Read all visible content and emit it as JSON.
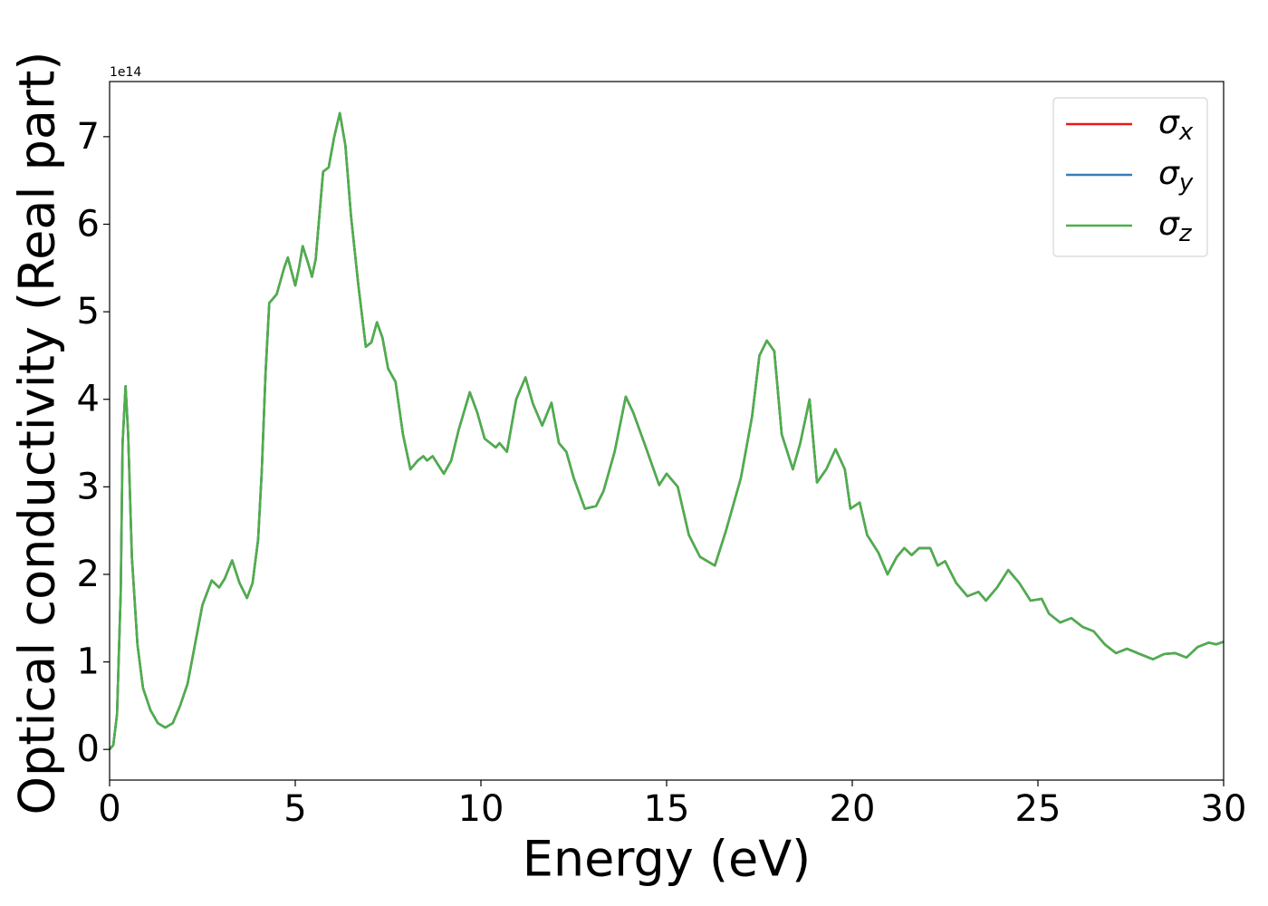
{
  "chart_data": {
    "type": "line",
    "x_label": "Energy (eV)",
    "y_label": "Optical conductivity (Real part)",
    "y_offset_label": "1e14",
    "xlim": [
      0,
      30
    ],
    "xticks": [
      0,
      5,
      10,
      15,
      20,
      25,
      30
    ],
    "ylim": [
      -0.35,
      7.63
    ],
    "yticks": [
      0,
      1,
      2,
      3,
      4,
      5,
      6,
      7
    ],
    "legend": "upper right",
    "x": [
      0,
      0.1,
      0.2,
      0.3,
      0.35,
      0.43,
      0.5,
      0.6,
      0.75,
      0.9,
      1.1,
      1.3,
      1.5,
      1.7,
      1.9,
      2.1,
      2.3,
      2.5,
      2.75,
      2.95,
      3.1,
      3.3,
      3.5,
      3.7,
      3.85,
      4.0,
      4.1,
      4.2,
      4.3,
      4.5,
      4.7,
      4.8,
      5.0,
      5.1,
      5.2,
      5.35,
      5.45,
      5.55,
      5.75,
      5.9,
      6.05,
      6.2,
      6.35,
      6.5,
      6.7,
      6.9,
      7.05,
      7.2,
      7.35,
      7.5,
      7.7,
      7.9,
      8.1,
      8.3,
      8.45,
      8.55,
      8.7,
      9.0,
      9.2,
      9.4,
      9.7,
      9.9,
      10.1,
      10.4,
      10.5,
      10.7,
      10.95,
      11.2,
      11.4,
      11.65,
      11.9,
      12.1,
      12.3,
      12.5,
      12.8,
      13.1,
      13.3,
      13.6,
      13.9,
      14.1,
      14.4,
      14.8,
      15.0,
      15.3,
      15.6,
      15.9,
      16.3,
      16.6,
      17.0,
      17.3,
      17.5,
      17.7,
      17.9,
      18.1,
      18.4,
      18.6,
      18.85,
      19.05,
      19.3,
      19.55,
      19.8,
      19.95,
      20.2,
      20.4,
      20.7,
      20.95,
      21.2,
      21.4,
      21.6,
      21.8,
      22.1,
      22.3,
      22.5,
      22.8,
      23.1,
      23.4,
      23.6,
      23.9,
      24.2,
      24.5,
      24.8,
      25.1,
      25.3,
      25.6,
      25.9,
      26.2,
      26.5,
      26.8,
      27.1,
      27.4,
      27.8,
      28.1,
      28.4,
      28.7,
      29.0,
      29.3,
      29.6,
      29.8,
      30.0
    ],
    "series": [
      {
        "name": "σx",
        "color": "#e41a1c",
        "values": [
          0,
          0.05,
          0.4,
          1.8,
          3.5,
          4.15,
          3.6,
          2.2,
          1.2,
          0.7,
          0.45,
          0.3,
          0.25,
          0.3,
          0.5,
          0.75,
          1.2,
          1.65,
          1.93,
          1.85,
          1.95,
          2.16,
          1.9,
          1.73,
          1.9,
          2.4,
          3.2,
          4.3,
          5.1,
          5.2,
          5.5,
          5.62,
          5.3,
          5.5,
          5.75,
          5.55,
          5.4,
          5.6,
          6.6,
          6.65,
          7.0,
          7.27,
          6.9,
          6.1,
          5.3,
          4.6,
          4.65,
          4.88,
          4.7,
          4.35,
          4.2,
          3.6,
          3.2,
          3.3,
          3.35,
          3.3,
          3.35,
          3.15,
          3.3,
          3.65,
          4.08,
          3.85,
          3.55,
          3.45,
          3.5,
          3.4,
          4.0,
          4.25,
          3.95,
          3.7,
          3.96,
          3.5,
          3.4,
          3.1,
          2.75,
          2.78,
          2.95,
          3.4,
          4.03,
          3.85,
          3.5,
          3.02,
          3.15,
          3.0,
          2.45,
          2.2,
          2.1,
          2.5,
          3.1,
          3.8,
          4.5,
          4.67,
          4.55,
          3.6,
          3.2,
          3.5,
          4.0,
          3.05,
          3.2,
          3.43,
          3.2,
          2.75,
          2.82,
          2.45,
          2.25,
          2.0,
          2.2,
          2.3,
          2.22,
          2.3,
          2.3,
          2.1,
          2.15,
          1.9,
          1.75,
          1.8,
          1.7,
          1.85,
          2.05,
          1.9,
          1.7,
          1.72,
          1.55,
          1.45,
          1.5,
          1.4,
          1.35,
          1.2,
          1.1,
          1.15,
          1.08,
          1.03,
          1.09,
          1.1,
          1.05,
          1.17,
          1.22,
          1.2,
          1.23
        ]
      },
      {
        "name": "σy",
        "color": "#377eb8",
        "values": [
          0,
          0.05,
          0.4,
          1.8,
          3.5,
          4.15,
          3.6,
          2.2,
          1.2,
          0.7,
          0.45,
          0.3,
          0.25,
          0.3,
          0.5,
          0.75,
          1.2,
          1.65,
          1.93,
          1.85,
          1.95,
          2.16,
          1.9,
          1.73,
          1.9,
          2.4,
          3.2,
          4.3,
          5.1,
          5.2,
          5.5,
          5.62,
          5.3,
          5.5,
          5.75,
          5.55,
          5.4,
          5.6,
          6.6,
          6.65,
          7.0,
          7.27,
          6.9,
          6.1,
          5.3,
          4.6,
          4.65,
          4.88,
          4.7,
          4.35,
          4.2,
          3.6,
          3.2,
          3.3,
          3.35,
          3.3,
          3.35,
          3.15,
          3.3,
          3.65,
          4.08,
          3.85,
          3.55,
          3.45,
          3.5,
          3.4,
          4.0,
          4.25,
          3.95,
          3.7,
          3.96,
          3.5,
          3.4,
          3.1,
          2.75,
          2.78,
          2.95,
          3.4,
          4.03,
          3.85,
          3.5,
          3.02,
          3.15,
          3.0,
          2.45,
          2.2,
          2.1,
          2.5,
          3.1,
          3.8,
          4.5,
          4.67,
          4.55,
          3.6,
          3.2,
          3.5,
          4.0,
          3.05,
          3.2,
          3.43,
          3.2,
          2.75,
          2.82,
          2.45,
          2.25,
          2.0,
          2.2,
          2.3,
          2.22,
          2.3,
          2.3,
          2.1,
          2.15,
          1.9,
          1.75,
          1.8,
          1.7,
          1.85,
          2.05,
          1.9,
          1.7,
          1.72,
          1.55,
          1.45,
          1.5,
          1.4,
          1.35,
          1.2,
          1.1,
          1.15,
          1.08,
          1.03,
          1.09,
          1.1,
          1.05,
          1.17,
          1.22,
          1.2,
          1.23
        ]
      },
      {
        "name": "σz",
        "color": "#4daf4a",
        "values": [
          0,
          0.05,
          0.4,
          1.8,
          3.5,
          4.15,
          3.6,
          2.2,
          1.2,
          0.7,
          0.45,
          0.3,
          0.25,
          0.3,
          0.5,
          0.75,
          1.2,
          1.65,
          1.93,
          1.85,
          1.95,
          2.16,
          1.9,
          1.73,
          1.9,
          2.4,
          3.2,
          4.3,
          5.1,
          5.2,
          5.5,
          5.62,
          5.3,
          5.5,
          5.75,
          5.55,
          5.4,
          5.6,
          6.6,
          6.65,
          7.0,
          7.27,
          6.9,
          6.1,
          5.3,
          4.6,
          4.65,
          4.88,
          4.7,
          4.35,
          4.2,
          3.6,
          3.2,
          3.3,
          3.35,
          3.3,
          3.35,
          3.15,
          3.3,
          3.65,
          4.08,
          3.85,
          3.55,
          3.45,
          3.5,
          3.4,
          4.0,
          4.25,
          3.95,
          3.7,
          3.96,
          3.5,
          3.4,
          3.1,
          2.75,
          2.78,
          2.95,
          3.4,
          4.03,
          3.85,
          3.5,
          3.02,
          3.15,
          3.0,
          2.45,
          2.2,
          2.1,
          2.5,
          3.1,
          3.8,
          4.5,
          4.67,
          4.55,
          3.6,
          3.2,
          3.5,
          4.0,
          3.05,
          3.2,
          3.43,
          3.2,
          2.75,
          2.82,
          2.45,
          2.25,
          2.0,
          2.2,
          2.3,
          2.22,
          2.3,
          2.3,
          2.1,
          2.15,
          1.9,
          1.75,
          1.8,
          1.7,
          1.85,
          2.05,
          1.9,
          1.7,
          1.72,
          1.55,
          1.45,
          1.5,
          1.4,
          1.35,
          1.2,
          1.1,
          1.15,
          1.08,
          1.03,
          1.09,
          1.1,
          1.05,
          1.17,
          1.22,
          1.2,
          1.23
        ]
      }
    ]
  }
}
